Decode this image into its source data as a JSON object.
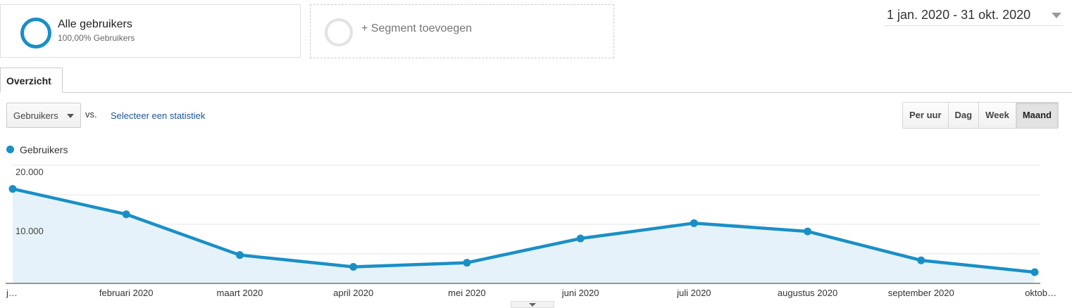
{
  "segments": {
    "active": {
      "title": "Alle gebruikers",
      "subtitle": "100,00% Gebruikers"
    },
    "add_label": "+ Segment toevoegen"
  },
  "date_range": "1 jan. 2020 - 31 okt. 2020",
  "tabs": [
    {
      "label": "Overzicht",
      "active": true
    }
  ],
  "metric_selector": {
    "value": "Gebruikers",
    "vs_label": "vs.",
    "select_link": "Selecteer een statistiek"
  },
  "period_buttons": [
    {
      "label": "Per uur",
      "active": false
    },
    {
      "label": "Dag",
      "active": false
    },
    {
      "label": "Week",
      "active": false
    },
    {
      "label": "Maand",
      "active": true
    }
  ],
  "colors": {
    "series": "#1a8fc6",
    "area": "#e5f2f9",
    "grid": "#e6e6e6"
  },
  "chart_data": {
    "type": "area",
    "title": "",
    "xlabel": "",
    "ylabel": "",
    "x_tick_labels": [
      "j…",
      "februari 2020",
      "maart 2020",
      "april 2020",
      "mei 2020",
      "juni 2020",
      "juli 2020",
      "augustus 2020",
      "september 2020",
      "oktob…"
    ],
    "y_tick_labels": [
      "20.000",
      "10.000"
    ],
    "ylim": [
      0,
      20000
    ],
    "grid": true,
    "series": [
      {
        "name": "Gebruikers",
        "values": [
          16000,
          11700,
          4800,
          2800,
          3500,
          7600,
          10200,
          8800,
          3900,
          1900
        ]
      }
    ]
  }
}
